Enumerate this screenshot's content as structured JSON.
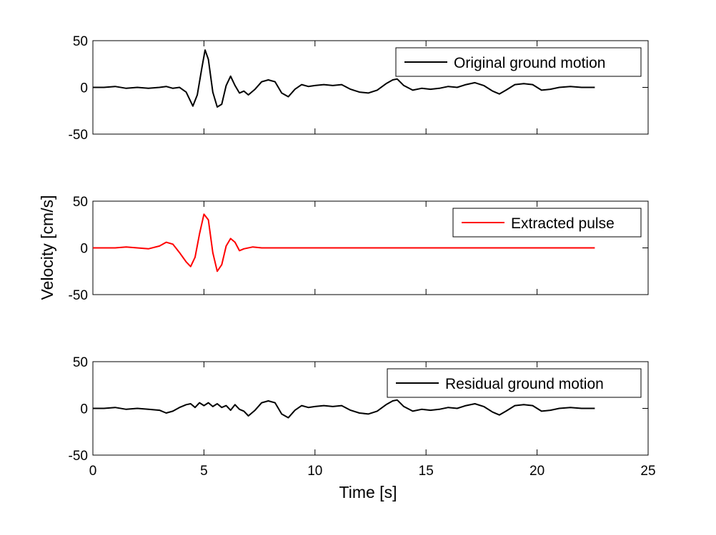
{
  "chart_data": {
    "type": "line",
    "xlabel": "Time [s]",
    "ylabel": "Velocity [cm/s]",
    "xlim": [
      0,
      25
    ],
    "ylim": [
      -50,
      50
    ],
    "xticks": [
      0,
      5,
      10,
      15,
      20,
      25
    ],
    "yticks": [
      -50,
      0,
      50
    ],
    "grid": false,
    "legend_position": "top-right",
    "panels": [
      {
        "legend": "Original ground motion",
        "color": "#000000",
        "series": {
          "name": "Original ground motion",
          "x": [
            0,
            0.5,
            1,
            1.5,
            2,
            2.5,
            3,
            3.3,
            3.6,
            3.9,
            4.2,
            4.5,
            4.7,
            4.9,
            5.05,
            5.2,
            5.4,
            5.6,
            5.8,
            6,
            6.2,
            6.4,
            6.6,
            6.8,
            7,
            7.3,
            7.6,
            7.9,
            8.2,
            8.5,
            8.8,
            9.1,
            9.4,
            9.7,
            10,
            10.4,
            10.8,
            11.2,
            11.6,
            12,
            12.4,
            12.8,
            13.2,
            13.5,
            13.7,
            14,
            14.4,
            14.8,
            15.2,
            15.6,
            16,
            16.4,
            16.8,
            17.2,
            17.6,
            18,
            18.3,
            18.6,
            19,
            19.4,
            19.8,
            20.2,
            20.6,
            21,
            21.5,
            22,
            22.6
          ],
          "y": [
            0,
            0,
            1,
            -1,
            0,
            -1,
            0,
            1,
            -1,
            0,
            -5,
            -20,
            -8,
            20,
            40,
            30,
            -5,
            -21,
            -18,
            2,
            12,
            2,
            -6,
            -4,
            -8,
            -2,
            6,
            8,
            6,
            -6,
            -10,
            -2,
            3,
            1,
            2,
            3,
            2,
            3,
            -2,
            -5,
            -6,
            -3,
            4,
            8,
            9,
            2,
            -3,
            -1,
            -2,
            -1,
            1,
            0,
            3,
            5,
            2,
            -4,
            -7,
            -3,
            3,
            4,
            3,
            -3,
            -2,
            0,
            1,
            0,
            0
          ]
        }
      },
      {
        "legend": "Extracted pulse",
        "color": "#ff0000",
        "series": {
          "name": "Extracted pulse",
          "x": [
            0,
            1,
            1.5,
            2,
            2.5,
            3,
            3.3,
            3.6,
            3.9,
            4.2,
            4.4,
            4.6,
            4.8,
            5.0,
            5.2,
            5.4,
            5.6,
            5.8,
            6.0,
            6.2,
            6.4,
            6.6,
            6.8,
            7.2,
            7.6,
            8.2,
            9,
            10,
            15,
            20,
            22.6
          ],
          "y": [
            0,
            0,
            1,
            0,
            -1,
            2,
            6,
            4,
            -5,
            -15,
            -20,
            -10,
            15,
            36,
            30,
            -5,
            -25,
            -18,
            2,
            10,
            6,
            -3,
            -1,
            1,
            0,
            0,
            0,
            0,
            0,
            0,
            0
          ]
        }
      },
      {
        "legend": "Residual ground motion",
        "color": "#000000",
        "series": {
          "name": "Residual ground motion",
          "x": [
            0,
            0.5,
            1,
            1.5,
            2,
            2.5,
            3,
            3.3,
            3.6,
            3.9,
            4.2,
            4.4,
            4.6,
            4.8,
            5.0,
            5.2,
            5.4,
            5.6,
            5.8,
            6.0,
            6.2,
            6.4,
            6.6,
            6.8,
            7.0,
            7.3,
            7.6,
            7.9,
            8.2,
            8.5,
            8.8,
            9.1,
            9.4,
            9.7,
            10,
            10.4,
            10.8,
            11.2,
            11.6,
            12,
            12.4,
            12.8,
            13.2,
            13.5,
            13.7,
            14,
            14.4,
            14.8,
            15.2,
            15.6,
            16,
            16.4,
            16.8,
            17.2,
            17.6,
            18,
            18.3,
            18.6,
            19,
            19.4,
            19.8,
            20.2,
            20.6,
            21,
            21.5,
            22,
            22.6
          ],
          "y": [
            0,
            0,
            1,
            -1,
            0,
            -1,
            -2,
            -5,
            -3,
            1,
            4,
            5,
            1,
            6,
            3,
            6,
            2,
            5,
            1,
            3,
            -2,
            4,
            -1,
            -3,
            -8,
            -2,
            6,
            8,
            6,
            -6,
            -10,
            -2,
            3,
            1,
            2,
            3,
            2,
            3,
            -2,
            -5,
            -6,
            -3,
            4,
            8,
            9,
            2,
            -3,
            -1,
            -2,
            -1,
            1,
            0,
            3,
            5,
            2,
            -4,
            -7,
            -3,
            3,
            4,
            3,
            -3,
            -2,
            0,
            1,
            0,
            0
          ]
        }
      }
    ]
  }
}
